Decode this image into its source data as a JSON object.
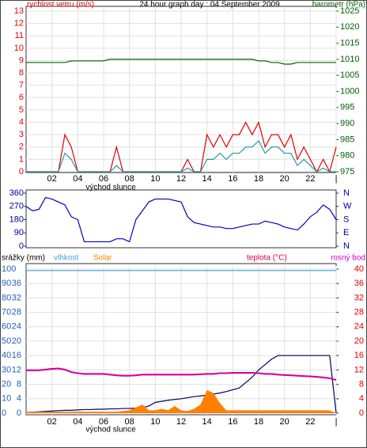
{
  "chart_data": [
    {
      "type": "line",
      "title": "24 hour graph day : 04 September 2009",
      "annotation": "východ slunce",
      "x": [
        0,
        0.5,
        1,
        1.5,
        2,
        2.5,
        3,
        3.5,
        4,
        4.5,
        5,
        5.5,
        6,
        6.5,
        7,
        7.5,
        8,
        8.5,
        9,
        9.5,
        10,
        10.5,
        11,
        11.5,
        12,
        12.5,
        13,
        13.5,
        14,
        14.5,
        15,
        15.5,
        16,
        16.5,
        17,
        17.5,
        18,
        18.5,
        19,
        19.5,
        20,
        20.5,
        21,
        21.5,
        22,
        22.5,
        23,
        23.5,
        24
      ],
      "xlim": [
        0,
        24
      ],
      "xticks": [
        {
          "value": 2,
          "label": "02"
        },
        {
          "value": 4,
          "label": "04"
        },
        {
          "value": 6,
          "label": "06"
        },
        {
          "value": 8,
          "label": "08"
        },
        10,
        12,
        14,
        16,
        18,
        20,
        22,
        {
          "value": 24,
          "label": "|"
        }
      ],
      "ylim": [
        0,
        13
      ],
      "yticks": [
        0,
        1,
        2,
        3,
        4,
        5,
        6,
        7,
        8,
        9,
        10,
        11,
        12,
        13
      ],
      "y2lim": [
        975,
        1025
      ],
      "y2ticks": [
        975,
        980,
        985,
        990,
        995,
        1000,
        1005,
        1010,
        1015,
        1020,
        1025
      ],
      "grid": true,
      "series": [
        {
          "name": "rychlost vetru (m/s)",
          "color": "#e00000",
          "values": [
            0,
            0,
            0,
            0,
            0,
            0,
            3,
            2,
            0,
            0,
            0,
            0,
            0,
            0,
            2,
            0,
            0,
            0,
            0,
            0,
            0,
            0,
            0,
            0,
            0,
            1,
            0,
            0,
            3,
            2,
            3,
            2,
            3,
            3,
            4,
            3,
            4,
            2,
            3,
            3,
            2,
            3,
            1,
            2,
            1,
            0,
            1,
            0,
            2
          ]
        },
        {
          "color": "#2a9aa0",
          "values": [
            0,
            0,
            0,
            0,
            0,
            0,
            1.5,
            1,
            0,
            0,
            0,
            0,
            0,
            0,
            0.5,
            0,
            0,
            0,
            0,
            0,
            0,
            0,
            0,
            0,
            0,
            0.3,
            0,
            0,
            1,
            1,
            1.5,
            1,
            1.5,
            1.5,
            2,
            2,
            2.5,
            1.5,
            2,
            2,
            1.5,
            1.5,
            0.5,
            1,
            0.5,
            0,
            0.3,
            0,
            0
          ]
        },
        {
          "name": "barometr (hPa)",
          "color": "#006000",
          "axis": "y2",
          "values": [
            1009,
            1009,
            1009,
            1009,
            1009,
            1009,
            1009,
            1009.5,
            1009.5,
            1009.5,
            1009.5,
            1009.5,
            1009.5,
            1010,
            1010,
            1010,
            1010,
            1010,
            1010,
            1010,
            1010,
            1010,
            1010,
            1010,
            1010,
            1010,
            1010,
            1010,
            1010,
            1010,
            1010,
            1010,
            1010,
            1010,
            1010,
            1010,
            1009.5,
            1009.5,
            1009,
            1009,
            1008.5,
            1008.5,
            1009,
            1009,
            1009,
            1009,
            1009,
            1009,
            1009
          ]
        }
      ]
    },
    {
      "type": "line",
      "x": [
        0,
        0.5,
        1,
        1.5,
        2,
        2.5,
        3,
        3.5,
        4,
        4.5,
        5,
        5.5,
        6,
        6.5,
        7,
        7.5,
        8,
        8.5,
        9,
        9.5,
        10,
        10.5,
        11,
        11.5,
        12,
        12.5,
        13,
        13.5,
        14,
        14.5,
        15,
        15.5,
        16,
        16.5,
        17,
        17.5,
        18,
        18.5,
        19,
        19.5,
        20,
        20.5,
        21,
        21.5,
        22,
        22.5,
        23,
        23.5,
        24
      ],
      "xlim": [
        0,
        24
      ],
      "ylim": [
        0,
        360
      ],
      "yticks": [
        0,
        90,
        180,
        270,
        360
      ],
      "y2lim": [
        0,
        360
      ],
      "y2ticks": [
        {
          "value": 360,
          "label": "N"
        },
        {
          "value": 270,
          "label": "W"
        },
        {
          "value": 180,
          "label": "S"
        },
        {
          "value": 90,
          "label": "E"
        },
        {
          "value": 0,
          "label": "N"
        }
      ],
      "series": [
        {
          "color": "#0000c0",
          "values": [
            270,
            240,
            250,
            330,
            320,
            300,
            280,
            200,
            180,
            30,
            30,
            30,
            30,
            30,
            50,
            50,
            30,
            180,
            240,
            300,
            320,
            320,
            320,
            310,
            300,
            200,
            160,
            150,
            140,
            130,
            130,
            120,
            120,
            130,
            140,
            150,
            150,
            170,
            160,
            150,
            130,
            120,
            110,
            150,
            200,
            230,
            280,
            250,
            180
          ]
        }
      ]
    },
    {
      "type": "line",
      "annotation": "východ slunce",
      "x": [
        0,
        0.5,
        1,
        1.5,
        2,
        2.5,
        3,
        3.5,
        4,
        4.5,
        5,
        5.5,
        6,
        6.5,
        7,
        7.5,
        8,
        8.5,
        9,
        9.5,
        10,
        10.5,
        11,
        11.5,
        12,
        12.5,
        13,
        13.5,
        14,
        14.5,
        15,
        15.5,
        16,
        16.5,
        17,
        17.5,
        18,
        18.5,
        19,
        19.5,
        20,
        20.5,
        21,
        21.5,
        22,
        22.5,
        23,
        23.5,
        24
      ],
      "xlim": [
        0,
        24
      ],
      "xticks": [
        {
          "value": 2,
          "label": "02"
        },
        {
          "value": 4,
          "label": "04"
        },
        {
          "value": 6,
          "label": "06"
        },
        {
          "value": 8,
          "label": "08"
        },
        10,
        12,
        14,
        16,
        18,
        20,
        22,
        {
          "value": 24,
          "label": "|"
        }
      ],
      "ylim": [
        0,
        100
      ],
      "yticks": [
        0,
        10,
        20,
        30,
        40,
        50,
        60,
        70,
        80,
        90,
        100
      ],
      "y2lim": [
        0,
        40
      ],
      "y2ticks": [
        0,
        4,
        8,
        12,
        16,
        20,
        24,
        28,
        32,
        36
      ],
      "y3lim": [
        0,
        40
      ],
      "y3ticks": [
        0,
        4,
        8,
        12,
        16,
        20,
        24,
        28,
        32,
        36,
        40
      ],
      "grid": true,
      "series": [
        {
          "name": "srážky (mm)",
          "color": "#000060",
          "axis": "y2",
          "values": [
            0.2,
            0.3,
            0.4,
            0.5,
            0.6,
            0.7,
            0.8,
            0.8,
            0.9,
            1,
            1,
            1.1,
            1.1,
            1.2,
            1.2,
            1.3,
            1.3,
            1.4,
            1.5,
            2,
            3,
            3.3,
            3.6,
            3.8,
            4,
            4.3,
            4.6,
            4.8,
            5,
            5.3,
            5.6,
            6,
            6.5,
            7,
            8.5,
            10,
            12,
            13.5,
            15,
            16,
            16,
            16,
            16,
            16,
            16,
            16,
            16,
            16,
            0
          ]
        },
        {
          "name": "vlhkost",
          "color": "#40a0e0",
          "values": [
            99,
            99,
            99,
            99,
            99,
            99,
            99,
            99,
            99,
            99,
            99,
            99,
            99,
            99,
            99,
            99,
            99,
            99,
            99,
            99,
            99,
            99,
            99,
            99,
            99,
            99,
            99,
            99,
            99,
            99,
            99,
            99,
            99,
            99,
            99,
            99,
            99,
            99,
            99,
            99,
            99,
            99,
            99,
            99,
            99,
            99,
            99,
            99,
            99
          ]
        },
        {
          "name": "Solar",
          "color": "#ff8000",
          "type": "area",
          "values": [
            1,
            1,
            1,
            1,
            1,
            1,
            1,
            1,
            1,
            1,
            1,
            1,
            1,
            1,
            1,
            1.5,
            2,
            4,
            6,
            2,
            2,
            3,
            2,
            5,
            2,
            1.5,
            3,
            6,
            16,
            14,
            7,
            2,
            2,
            2,
            2,
            2,
            2,
            2,
            2,
            2,
            2,
            2,
            2,
            2,
            2,
            2,
            2,
            2,
            0
          ]
        },
        {
          "name": "teplota (°C)",
          "color": "#e00040",
          "axis": "y3",
          "values": [
            12,
            12,
            12,
            12.2,
            12.4,
            12.5,
            12.2,
            11.5,
            11.2,
            11,
            11,
            11,
            11,
            10.8,
            10.6,
            10.5,
            10.5,
            10.6,
            10.8,
            10.8,
            10.8,
            10.8,
            10.8,
            10.8,
            10.8,
            10.8,
            10.8,
            10.9,
            11,
            11,
            11.2,
            11.2,
            11.3,
            11.3,
            11.3,
            11.3,
            11.2,
            11,
            11,
            10.8,
            10.7,
            10.6,
            10.5,
            10.4,
            10.3,
            10.2,
            10,
            9.8,
            9.3
          ]
        },
        {
          "name": "rosný bod",
          "color": "#d000d0",
          "axis": "y3",
          "values": [
            11.8,
            11.8,
            11.8,
            12,
            12.2,
            12.3,
            12,
            11.3,
            11,
            10.8,
            10.8,
            10.8,
            10.8,
            10.6,
            10.4,
            10.3,
            10.3,
            10.4,
            10.6,
            10.6,
            10.6,
            10.6,
            10.6,
            10.6,
            10.6,
            10.6,
            10.6,
            10.7,
            10.8,
            10.8,
            11,
            11,
            11.1,
            11.1,
            11.1,
            11.1,
            11,
            10.8,
            10.8,
            10.6,
            10.5,
            10.4,
            10.3,
            10.2,
            10.1,
            10,
            9.8,
            9.6,
            9.1
          ]
        }
      ]
    }
  ]
}
